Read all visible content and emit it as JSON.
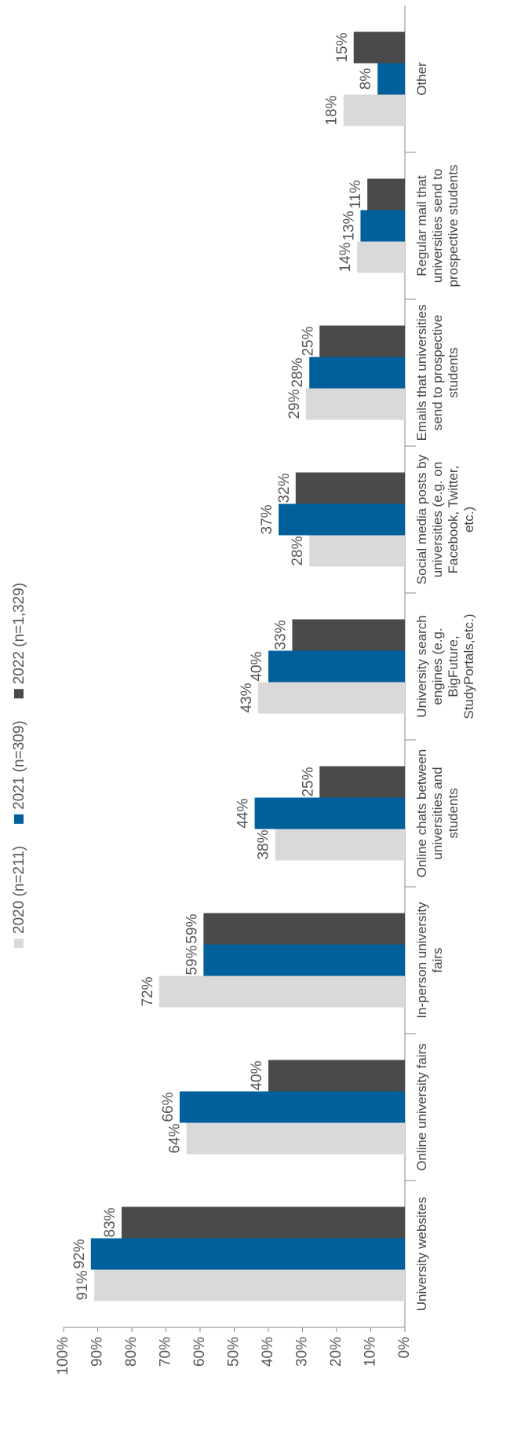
{
  "chart_data": {
    "type": "bar",
    "categories": [
      "University websites",
      "Online university fairs",
      "In-person university fairs",
      "Online chats between universities and students",
      "University search engines (e.g. BigFuture, StudyPortals,etc.)",
      "Social media posts by universities (e.g. on Facebook, Twitter, etc.)",
      "Emails that universities send to prospective students",
      "Regular mail that universities send to prospective students",
      "Other"
    ],
    "series": [
      {
        "name": "2020 (n=211)",
        "color": "#d9d9d9",
        "values": [
          91,
          64,
          72,
          38,
          43,
          28,
          29,
          14,
          18
        ],
        "value_labels": [
          "91%",
          "64%",
          "72%",
          "38%",
          "43%",
          "28%",
          "29%",
          "14%",
          "18%"
        ]
      },
      {
        "name": "2021 (n=309)",
        "color": "#00609c",
        "values": [
          92,
          66,
          59,
          44,
          40,
          37,
          28,
          13,
          8
        ],
        "value_labels": [
          "92%",
          "66%",
          "59%",
          "44%",
          "40%",
          "37%",
          "28%",
          "13%",
          "8%"
        ]
      },
      {
        "name": "2022 (n=1,329)",
        "color": "#4a4a4a",
        "values": [
          83,
          40,
          59,
          25,
          33,
          32,
          25,
          11,
          15
        ],
        "value_labels": [
          "83%",
          "40%",
          "59%",
          "25%",
          "33%",
          "32%",
          "25%",
          "11%",
          "15%"
        ]
      }
    ],
    "ylim": [
      0,
      100
    ],
    "yticks": [
      {
        "value": 0,
        "label": "0%"
      },
      {
        "value": 10,
        "label": "10%"
      },
      {
        "value": 20,
        "label": "20%"
      },
      {
        "value": 30,
        "label": "30%"
      },
      {
        "value": 40,
        "label": "40%"
      },
      {
        "value": 50,
        "label": "50%"
      },
      {
        "value": 60,
        "label": "60%"
      },
      {
        "value": 70,
        "label": "70%"
      },
      {
        "value": 80,
        "label": "80%"
      },
      {
        "value": 90,
        "label": "90%"
      },
      {
        "value": 100,
        "label": "100%"
      }
    ],
    "grid": false
  }
}
